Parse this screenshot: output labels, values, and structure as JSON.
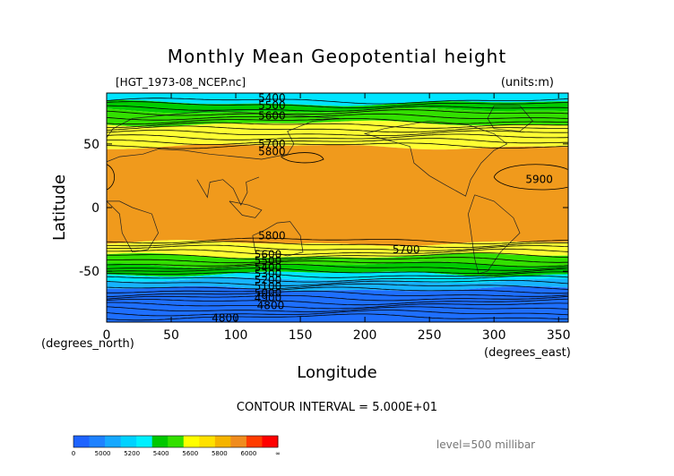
{
  "chart_data": {
    "type": "heatmap",
    "title": "Monthly Mean Geopotential height",
    "subtitle_left": "[HGT_1973-08_NCEP.nc]",
    "subtitle_right": "(units:m)",
    "xlabel": "Longitude",
    "ylabel": "Latitude",
    "x_unit_label": "(degrees_east)",
    "y_unit_label": "(degrees_north)",
    "xlim": [
      0,
      357.5
    ],
    "ylim": [
      -90,
      90
    ],
    "x_ticks": [
      "0",
      "50",
      "100",
      "150",
      "200",
      "250",
      "300",
      "350"
    ],
    "y_ticks": [
      "50",
      "0",
      "-50"
    ],
    "contour_interval_text": "CONTOUR INTERVAL = 5.000E+01",
    "level_text": "level=500 millibar",
    "contour_labels": [
      {
        "text": "5400",
        "lon": 128,
        "lat": 86
      },
      {
        "text": "5500",
        "lon": 128,
        "lat": 80
      },
      {
        "text": "5600",
        "lon": 128,
        "lat": 72
      },
      {
        "text": "5700",
        "lon": 128,
        "lat": 50
      },
      {
        "text": "5800",
        "lon": 128,
        "lat": 44
      },
      {
        "text": "5900",
        "lon": 335,
        "lat": 22
      },
      {
        "text": "5800",
        "lon": 128,
        "lat": -22
      },
      {
        "text": "5700",
        "lon": 232,
        "lat": -33
      },
      {
        "text": "5600",
        "lon": 125,
        "lat": -37
      },
      {
        "text": "5500",
        "lon": 125,
        "lat": -42
      },
      {
        "text": "5400",
        "lon": 125,
        "lat": -47
      },
      {
        "text": "5300",
        "lon": 125,
        "lat": -52
      },
      {
        "text": "5200",
        "lon": 125,
        "lat": -57
      },
      {
        "text": "5100",
        "lon": 125,
        "lat": -62
      },
      {
        "text": "5000",
        "lon": 125,
        "lat": -67
      },
      {
        "text": "4900",
        "lon": 125,
        "lat": -71
      },
      {
        "text": "4800",
        "lon": 127,
        "lat": -77
      },
      {
        "text": "4800",
        "lon": 92,
        "lat": -87
      }
    ],
    "bands_north_to_south": [
      {
        "lat_top": 90,
        "lat_bottom": 82,
        "value": 5300,
        "color": "#00e4ff"
      },
      {
        "lat_top": 82,
        "lat_bottom": 76,
        "value": 5500,
        "color": "#00cc00"
      },
      {
        "lat_top": 76,
        "lat_bottom": 66,
        "value": 5600,
        "color": "#33e000"
      },
      {
        "lat_top": 66,
        "lat_bottom": 48,
        "value": 5750,
        "color": "#ffff33"
      },
      {
        "lat_top": 48,
        "lat_bottom": -28,
        "value": 5850,
        "color": "#f09a1c"
      },
      {
        "lat_top": -28,
        "lat_bottom": -38,
        "value": 5750,
        "color": "#ffff33"
      },
      {
        "lat_top": -38,
        "lat_bottom": -45,
        "value": 5650,
        "color": "#33e000"
      },
      {
        "lat_top": -45,
        "lat_bottom": -52,
        "value": 5500,
        "color": "#00cc00"
      },
      {
        "lat_top": -52,
        "lat_bottom": -57,
        "value": 5350,
        "color": "#00e4ff"
      },
      {
        "lat_top": -57,
        "lat_bottom": -64,
        "value": 5250,
        "color": "#16b4ff"
      },
      {
        "lat_top": -64,
        "lat_bottom": -90,
        "value": 4950,
        "color": "#1e6fff"
      }
    ],
    "colorbar": {
      "tick_labels": [
        "0",
        "5000",
        "5200",
        "5400",
        "5600",
        "5800",
        "6000",
        "∞"
      ],
      "segments": [
        {
          "color": "#1e64ff"
        },
        {
          "color": "#1e82ff"
        },
        {
          "color": "#16a8ff"
        },
        {
          "color": "#00d2ff"
        },
        {
          "color": "#00f0ff"
        },
        {
          "color": "#00c800"
        },
        {
          "color": "#33e000"
        },
        {
          "color": "#ffff00"
        },
        {
          "color": "#ffe100"
        },
        {
          "color": "#f5b400"
        },
        {
          "color": "#f08c1e"
        },
        {
          "color": "#ff3c00"
        },
        {
          "color": "#ff0000"
        }
      ]
    }
  }
}
